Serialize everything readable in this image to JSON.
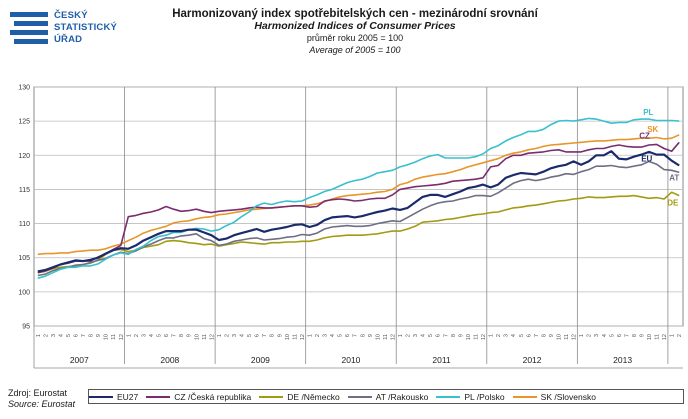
{
  "logo": {
    "line1": "ČESKÝ",
    "line2": "STATISTICKÝ",
    "line3": "ÚŘAD"
  },
  "titles": {
    "cz": "Harmonizovaný index spotřebitelských cen - mezinárodní srovnání",
    "en": "Harmonized Indices of Consumer Prices",
    "base_cz": "průměr roku 2005 = 100",
    "base_en": "Average of 2005 = 100"
  },
  "source": {
    "cz": "Zdroj: Eurostat",
    "en": "Source: Eurostat"
  },
  "colors": {
    "EU27": "#1b2a6b",
    "CZ": "#7a2d6e",
    "DE": "#a39a12",
    "AT": "#6e6e84",
    "PL": "#39c0cf",
    "SK": "#e8962a"
  },
  "chart_data": {
    "type": "line",
    "ylim": [
      95,
      130
    ],
    "yticks": [
      95,
      100,
      105,
      110,
      115,
      120,
      125,
      130
    ],
    "grid": true,
    "x_start": "2007-01",
    "x_end": "2013-02",
    "years": [
      "2007",
      "2008",
      "2009",
      "2010",
      "2011",
      "2012",
      "2013"
    ],
    "month_labels": [
      "1",
      "2",
      "3",
      "4",
      "5",
      "6",
      "7",
      "8",
      "9",
      "10",
      "11",
      "12"
    ],
    "legend_position": "bottom",
    "series": [
      {
        "key": "EU27",
        "name": "EU27",
        "end_label": "EU",
        "values": [
          103.0,
          103.2,
          103.6,
          104.0,
          104.3,
          104.6,
          104.5,
          104.7,
          105.0,
          105.6,
          106.1,
          106.4,
          106.3,
          106.8,
          107.5,
          108.0,
          108.5,
          108.9,
          108.9,
          108.9,
          109.1,
          109.1,
          108.7,
          108.3,
          107.6,
          107.8,
          108.3,
          108.6,
          108.9,
          109.2,
          108.8,
          109.1,
          109.3,
          109.5,
          109.8,
          109.9,
          109.5,
          109.8,
          110.5,
          110.9,
          111.0,
          111.1,
          110.9,
          111.1,
          111.4,
          111.7,
          111.9,
          112.2,
          112.0,
          112.3,
          113.1,
          113.9,
          114.2,
          114.2,
          113.9,
          114.3,
          114.7,
          115.2,
          115.4,
          115.7,
          115.3,
          115.7,
          116.7,
          117.1,
          117.4,
          117.3,
          117.2,
          117.6,
          118.1,
          118.4,
          118.6,
          119.1,
          118.6,
          119.1,
          120.0,
          120.0,
          120.6,
          119.5,
          119.4,
          119.8,
          120.1,
          120.5,
          120.1,
          120.1,
          119.2,
          118.5
        ]
      },
      {
        "key": "CZ",
        "name": "CZ /Česká republika",
        "end_label": "CZ",
        "values": [
          102.8,
          103.1,
          103.5,
          104.0,
          104.2,
          104.5,
          104.5,
          104.5,
          105.1,
          105.6,
          106.2,
          106.8,
          111.0,
          111.2,
          111.5,
          111.7,
          112.0,
          112.5,
          112.1,
          111.8,
          111.9,
          112.1,
          111.8,
          111.6,
          111.8,
          111.9,
          112.0,
          112.1,
          112.3,
          112.4,
          112.3,
          112.3,
          112.4,
          112.5,
          112.6,
          112.6,
          112.4,
          112.5,
          113.3,
          113.5,
          113.6,
          113.5,
          113.3,
          113.4,
          113.6,
          113.7,
          113.7,
          114.2,
          115.0,
          115.2,
          115.4,
          115.5,
          115.6,
          115.7,
          115.9,
          116.2,
          116.3,
          116.4,
          116.5,
          116.7,
          118.3,
          118.5,
          119.5,
          120.0,
          120.0,
          120.3,
          120.4,
          120.5,
          120.7,
          120.8,
          120.5,
          120.5,
          120.5,
          120.8,
          121.0,
          121.0,
          121.3,
          121.5,
          121.3,
          121.2,
          121.2,
          121.5,
          121.6,
          121.0,
          120.6,
          121.9
        ]
      },
      {
        "key": "DE",
        "name": "DE /Německo",
        "end_label": "DE",
        "values": [
          102.8,
          103.0,
          103.4,
          103.6,
          103.7,
          103.8,
          104.0,
          104.2,
          104.7,
          105.5,
          106.1,
          106.2,
          105.9,
          106.1,
          106.5,
          106.7,
          106.9,
          107.4,
          107.5,
          107.4,
          107.2,
          107.1,
          106.9,
          107.0,
          106.7,
          106.9,
          107.1,
          107.3,
          107.2,
          107.1,
          107.0,
          107.2,
          107.2,
          107.3,
          107.3,
          107.4,
          107.4,
          107.6,
          107.9,
          108.1,
          108.2,
          108.3,
          108.3,
          108.3,
          108.4,
          108.5,
          108.7,
          108.9,
          108.9,
          109.2,
          109.6,
          110.2,
          110.3,
          110.4,
          110.6,
          110.7,
          110.9,
          111.1,
          111.3,
          111.4,
          111.6,
          111.7,
          112.0,
          112.3,
          112.4,
          112.6,
          112.7,
          112.9,
          113.1,
          113.3,
          113.4,
          113.6,
          113.7,
          113.9,
          113.8,
          113.8,
          113.9,
          114.0,
          114.0,
          114.1,
          113.9,
          113.7,
          113.8,
          113.6,
          114.6,
          114.1
        ]
      },
      {
        "key": "AT",
        "name": "AT /Rakousko",
        "end_label": "AT",
        "values": [
          102.4,
          102.6,
          103.1,
          103.4,
          103.6,
          103.9,
          104.0,
          104.3,
          104.6,
          104.9,
          105.4,
          105.8,
          105.6,
          106.0,
          106.6,
          107.0,
          107.5,
          107.9,
          107.9,
          108.2,
          108.3,
          108.5,
          107.8,
          107.5,
          106.8,
          107.0,
          107.4,
          107.6,
          107.8,
          107.9,
          107.6,
          107.7,
          107.8,
          108.0,
          108.1,
          108.4,
          108.3,
          108.6,
          109.2,
          109.5,
          109.6,
          109.7,
          109.6,
          109.6,
          109.7,
          110.0,
          110.2,
          110.4,
          110.3,
          110.9,
          111.5,
          112.1,
          112.6,
          113.0,
          113.2,
          113.3,
          113.6,
          113.8,
          114.1,
          114.1,
          114.0,
          114.5,
          115.2,
          115.9,
          116.3,
          116.5,
          116.3,
          116.5,
          116.8,
          117.0,
          117.3,
          117.2,
          117.6,
          117.9,
          118.4,
          118.4,
          118.5,
          118.3,
          118.2,
          118.4,
          118.6,
          119.1,
          118.7,
          117.9,
          117.8,
          117.5
        ]
      },
      {
        "key": "PL",
        "name": "PL /Polsko",
        "end_label": "PL",
        "values": [
          102.0,
          102.3,
          102.8,
          103.3,
          103.6,
          103.6,
          103.8,
          103.8,
          104.1,
          104.8,
          105.4,
          105.7,
          105.5,
          106.2,
          106.7,
          107.5,
          108.1,
          108.3,
          108.7,
          108.7,
          109.1,
          109.3,
          109.2,
          108.9,
          109.1,
          109.7,
          110.2,
          111.0,
          111.7,
          112.6,
          113.0,
          112.8,
          113.1,
          113.3,
          113.2,
          113.3,
          113.8,
          114.2,
          114.7,
          115.0,
          115.5,
          116.0,
          116.3,
          116.5,
          116.9,
          117.4,
          117.6,
          117.8,
          118.3,
          118.6,
          119.0,
          119.5,
          119.9,
          120.1,
          119.6,
          119.6,
          119.6,
          119.6,
          119.8,
          120.2,
          121.0,
          121.4,
          122.1,
          122.6,
          123.0,
          123.5,
          123.5,
          123.8,
          124.5,
          125.0,
          125.1,
          125.0,
          125.2,
          125.4,
          125.3,
          125.0,
          124.7,
          124.8,
          124.8,
          125.2,
          125.3,
          125.3,
          125.1,
          125.1,
          125.1,
          125.0
        ]
      },
      {
        "key": "SK",
        "name": "SK /Slovensko",
        "end_label": "SK",
        "values": [
          105.5,
          105.6,
          105.6,
          105.7,
          105.7,
          105.9,
          106.0,
          106.1,
          106.1,
          106.3,
          106.7,
          107.0,
          107.5,
          108.0,
          108.6,
          109.0,
          109.3,
          109.6,
          110.1,
          110.3,
          110.4,
          110.7,
          110.9,
          111.0,
          111.3,
          111.4,
          111.6,
          111.8,
          112.0,
          112.1,
          112.2,
          112.3,
          112.4,
          112.5,
          112.6,
          112.6,
          112.7,
          112.9,
          113.2,
          113.6,
          113.9,
          114.1,
          114.2,
          114.3,
          114.4,
          114.6,
          114.7,
          115.0,
          115.7,
          116.0,
          116.5,
          116.8,
          117.0,
          117.2,
          117.3,
          117.6,
          117.9,
          118.3,
          118.6,
          118.9,
          119.2,
          119.5,
          120.0,
          120.3,
          120.5,
          120.8,
          121.0,
          121.3,
          121.5,
          121.6,
          121.7,
          121.8,
          121.9,
          122.0,
          122.1,
          122.1,
          122.2,
          122.3,
          122.3,
          122.4,
          122.5,
          122.5,
          122.6,
          122.4,
          122.5,
          123.0
        ]
      }
    ]
  }
}
